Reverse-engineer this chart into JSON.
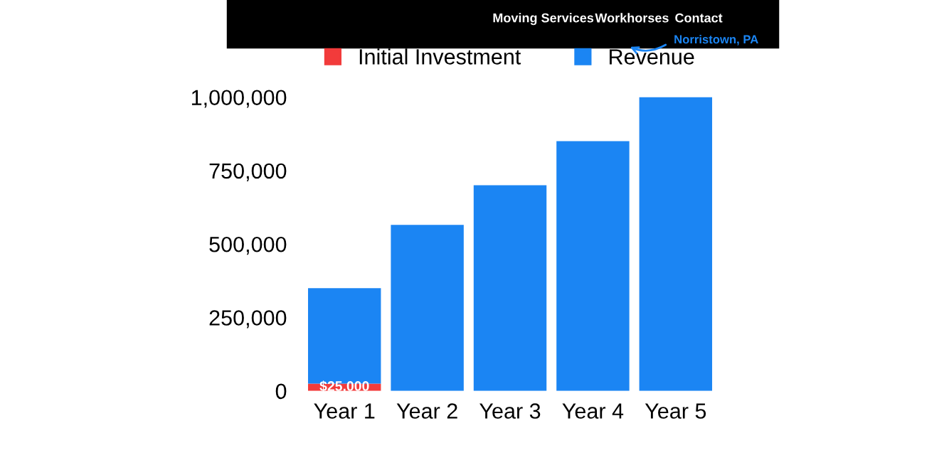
{
  "chart_data": {
    "type": "bar",
    "stacked": true,
    "categories": [
      "Year 1",
      "Year 2",
      "Year 3",
      "Year 4",
      "Year 5"
    ],
    "series": [
      {
        "name": "Initial Investment",
        "color": "#f23b3b",
        "values": [
          25000,
          null,
          null,
          null,
          null
        ],
        "value_labels": [
          "$25,000",
          null,
          null,
          null,
          null
        ]
      },
      {
        "name": "Revenue",
        "color": "#1b85f3",
        "values": [
          325000,
          565000,
          700000,
          850000,
          1000000
        ]
      }
    ],
    "ylim": [
      0,
      1030000
    ],
    "yticks": [
      {
        "value": 0,
        "label": "0"
      },
      {
        "value": 250000,
        "label": "250,000"
      },
      {
        "value": 500000,
        "label": "500,000"
      },
      {
        "value": 750000,
        "label": "750,000"
      },
      {
        "value": 1000000,
        "label": "1,000,000"
      }
    ],
    "grid": false,
    "legend": "top",
    "annotations": [
      "Moving Services",
      "Workhorses",
      "Contact",
      "Norristown, PA"
    ]
  }
}
